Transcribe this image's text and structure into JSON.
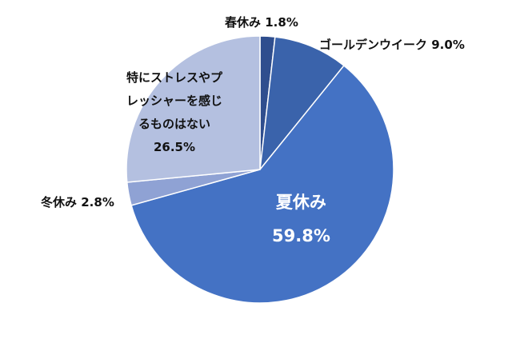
{
  "chart_data": {
    "type": "pie",
    "title": "",
    "slices": [
      {
        "label": "春休み",
        "value": 1.8,
        "value_label": "1.8%",
        "color": "#2f4e8e"
      },
      {
        "label": "ゴールデンウイーク",
        "value": 9.0,
        "value_label": "9.0%",
        "color": "#3a63ab"
      },
      {
        "label": "夏休み",
        "value": 59.8,
        "value_label": "59.8%",
        "color": "#4472c4"
      },
      {
        "label": "冬休み",
        "value": 2.8,
        "value_label": "2.8%",
        "color": "#8fa2d4"
      },
      {
        "label": "特にストレスやプレッシャーを感じるものはない",
        "label_lines": [
          "特にストレスやプ",
          "レッシャーを感じ",
          "るものはない"
        ],
        "value": 26.5,
        "value_label": "26.5%",
        "color": "#b4c0e0"
      }
    ],
    "legend": "none",
    "start_angle": "12 o'clock",
    "direction": "clockwise"
  }
}
